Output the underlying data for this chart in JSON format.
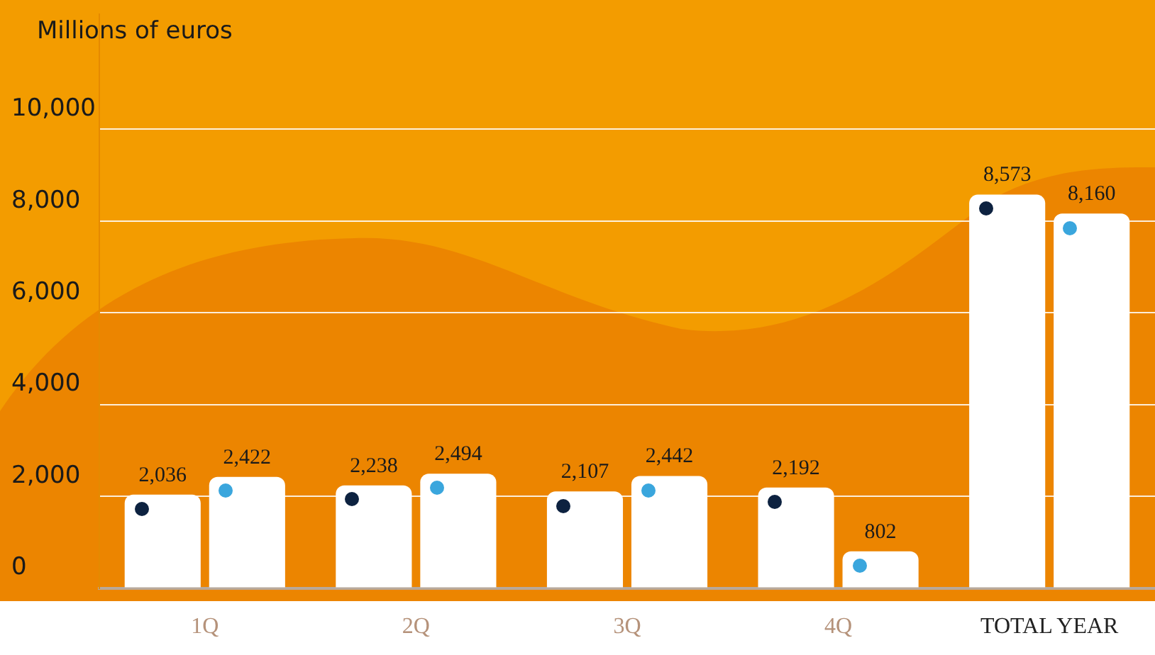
{
  "chart_data": {
    "type": "bar",
    "ylabel": "Millions of euros",
    "categories": [
      "1Q",
      "2Q",
      "3Q",
      "4Q",
      "TOTAL YEAR"
    ],
    "series": [
      {
        "color": "#ffffff",
        "values": [
          2036,
          2238,
          2107,
          2192,
          8573
        ],
        "value_labels": [
          "2,036",
          "2,238",
          "2,107",
          "2,192",
          "8,573"
        ]
      },
      {
        "color": "#ffffff",
        "values": [
          2422,
          2494,
          2442,
          802,
          8160
        ],
        "value_labels": [
          "2,422",
          "2,494",
          "2,442",
          "802",
          "8,160"
        ]
      }
    ],
    "ylim": [
      0,
      12500
    ],
    "yticks": [
      0,
      {
        "value": 2000,
        "label": "2,000"
      },
      {
        "value": 4000,
        "label": "4,000"
      },
      {
        "value": 6000,
        "label": "6,000"
      },
      {
        "value": 8000,
        "label": "8,000"
      },
      {
        "value": 10000,
        "label": "10,000"
      }
    ],
    "grid": "y"
  }
}
